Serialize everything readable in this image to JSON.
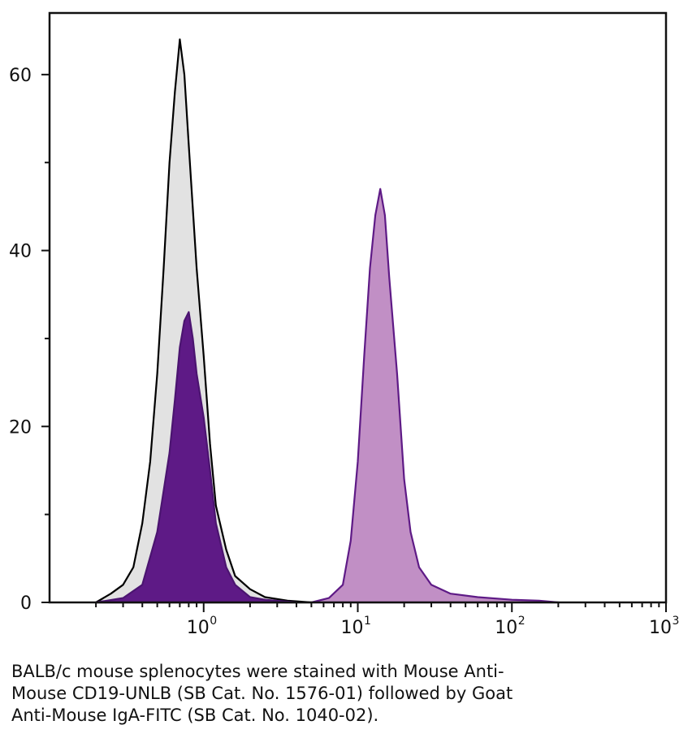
{
  "chart_data": {
    "type": "area",
    "xscale": "log",
    "xlim": [
      0.1,
      1000
    ],
    "ylim": [
      0,
      67
    ],
    "x_ticks": [
      {
        "base": "10",
        "exp": "0",
        "value": 1
      },
      {
        "base": "10",
        "exp": "1",
        "value": 10
      },
      {
        "base": "10",
        "exp": "2",
        "value": 100
      },
      {
        "base": "10",
        "exp": "3",
        "value": 1000
      }
    ],
    "y_ticks": [
      {
        "label": "0",
        "value": 0
      },
      {
        "label": "20",
        "value": 20
      },
      {
        "label": "40",
        "value": 40
      },
      {
        "label": "60",
        "value": 60
      }
    ],
    "series": [
      {
        "role": "control",
        "fill": "#e2e2e2",
        "stroke": "#000000",
        "points": [
          [
            0.2,
            0
          ],
          [
            0.25,
            1
          ],
          [
            0.3,
            2
          ],
          [
            0.35,
            4
          ],
          [
            0.4,
            9
          ],
          [
            0.45,
            16
          ],
          [
            0.5,
            26
          ],
          [
            0.55,
            38
          ],
          [
            0.6,
            50
          ],
          [
            0.65,
            58
          ],
          [
            0.7,
            64
          ],
          [
            0.75,
            60
          ],
          [
            0.8,
            52
          ],
          [
            0.9,
            38
          ],
          [
            1.0,
            28
          ],
          [
            1.1,
            18
          ],
          [
            1.2,
            11
          ],
          [
            1.4,
            6
          ],
          [
            1.6,
            3
          ],
          [
            2.0,
            1.5
          ],
          [
            2.5,
            0.6
          ],
          [
            3.5,
            0.2
          ],
          [
            5.0,
            0
          ]
        ]
      },
      {
        "role": "cd19-negative",
        "fill": "#5e1a86",
        "stroke": "#4b1470",
        "points": [
          [
            0.2,
            0
          ],
          [
            0.3,
            0.5
          ],
          [
            0.4,
            2
          ],
          [
            0.5,
            8
          ],
          [
            0.6,
            17
          ],
          [
            0.65,
            23
          ],
          [
            0.7,
            29
          ],
          [
            0.75,
            32
          ],
          [
            0.8,
            33
          ],
          [
            0.85,
            30
          ],
          [
            0.9,
            26
          ],
          [
            1.0,
            21
          ],
          [
            1.1,
            15
          ],
          [
            1.2,
            9
          ],
          [
            1.4,
            4
          ],
          [
            1.6,
            2
          ],
          [
            2.0,
            0.6
          ],
          [
            2.5,
            0.3
          ],
          [
            4.0,
            0
          ]
        ]
      },
      {
        "role": "cd19-positive",
        "fill": "#c18fc5",
        "stroke": "#5e1a86",
        "points": [
          [
            5.0,
            0
          ],
          [
            6.5,
            0.5
          ],
          [
            8.0,
            2
          ],
          [
            9.0,
            7
          ],
          [
            10.0,
            16
          ],
          [
            11.0,
            28
          ],
          [
            12.0,
            38
          ],
          [
            13.0,
            44
          ],
          [
            14.0,
            47
          ],
          [
            15.0,
            44
          ],
          [
            16.0,
            37
          ],
          [
            18.0,
            26
          ],
          [
            20.0,
            14
          ],
          [
            22.0,
            8
          ],
          [
            25.0,
            4
          ],
          [
            30.0,
            2
          ],
          [
            40.0,
            1
          ],
          [
            60.0,
            0.6
          ],
          [
            100.0,
            0.3
          ],
          [
            150.0,
            0.2
          ],
          [
            200.0,
            0
          ]
        ]
      }
    ]
  },
  "caption": "BALB/c mouse splenocytes were stained with Mouse Anti-\nMouse CD19-UNLB (SB Cat. No. 1576-01) followed by Goat\nAnti-Mouse IgA-FITC (SB Cat. No. 1040-02)."
}
